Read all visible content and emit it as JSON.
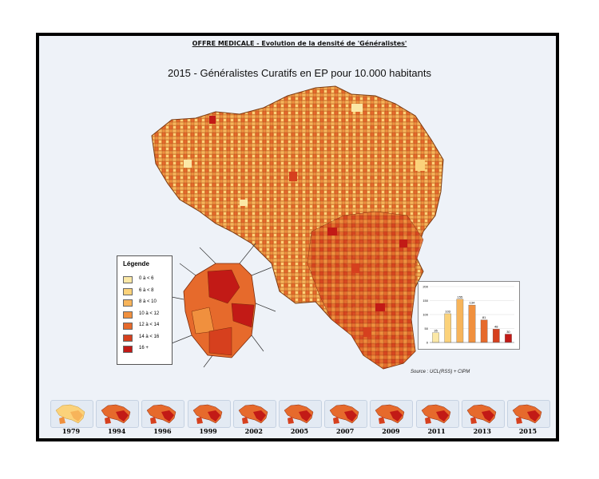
{
  "header": {
    "title": "OFFRE MEDICALE - Evolution de la densité de 'Généralistes'"
  },
  "map": {
    "title": "2015 - Généralistes Curatifs en EP pour 10.000 habitants"
  },
  "legend": {
    "title": "Légende",
    "items": [
      {
        "label": "0 à < 6",
        "color": "#fbe8a6"
      },
      {
        "label": "6 à < 8",
        "color": "#fbd27a"
      },
      {
        "label": "8 à < 10",
        "color": "#f7b45a"
      },
      {
        "label": "10 à < 12",
        "color": "#f0903e"
      },
      {
        "label": "12 à < 14",
        "color": "#e66a2c"
      },
      {
        "label": "14 à < 16",
        "color": "#d6401e"
      },
      {
        "label": "16 +",
        "color": "#c21a16"
      }
    ]
  },
  "chart_data": {
    "type": "bar",
    "categories": [
      "0 à < 6",
      "6 à < 8",
      "8 à < 10",
      "10 à < 12",
      "12 à < 14",
      "14 à < 16",
      "16 +"
    ],
    "values": [
      35,
      103,
      155,
      134,
      81,
      48,
      30
    ],
    "value_labels": [
      "35",
      "103",
      "155",
      "134",
      "81",
      "48",
      "30"
    ],
    "yticks": [
      "0",
      "50",
      "100",
      "150",
      "200"
    ],
    "ylim": [
      0,
      200
    ],
    "colors": [
      "#fbe8a6",
      "#fbd27a",
      "#f7b45a",
      "#f0903e",
      "#e66a2c",
      "#d6401e",
      "#c21a16"
    ],
    "grid": true
  },
  "source": "Source : UCL(RSS) + CIPM",
  "timeline": {
    "years": [
      "1979",
      "1994",
      "1996",
      "1999",
      "2002",
      "2005",
      "2007",
      "2009",
      "2011",
      "2013",
      "2015"
    ],
    "selected": "2015"
  }
}
